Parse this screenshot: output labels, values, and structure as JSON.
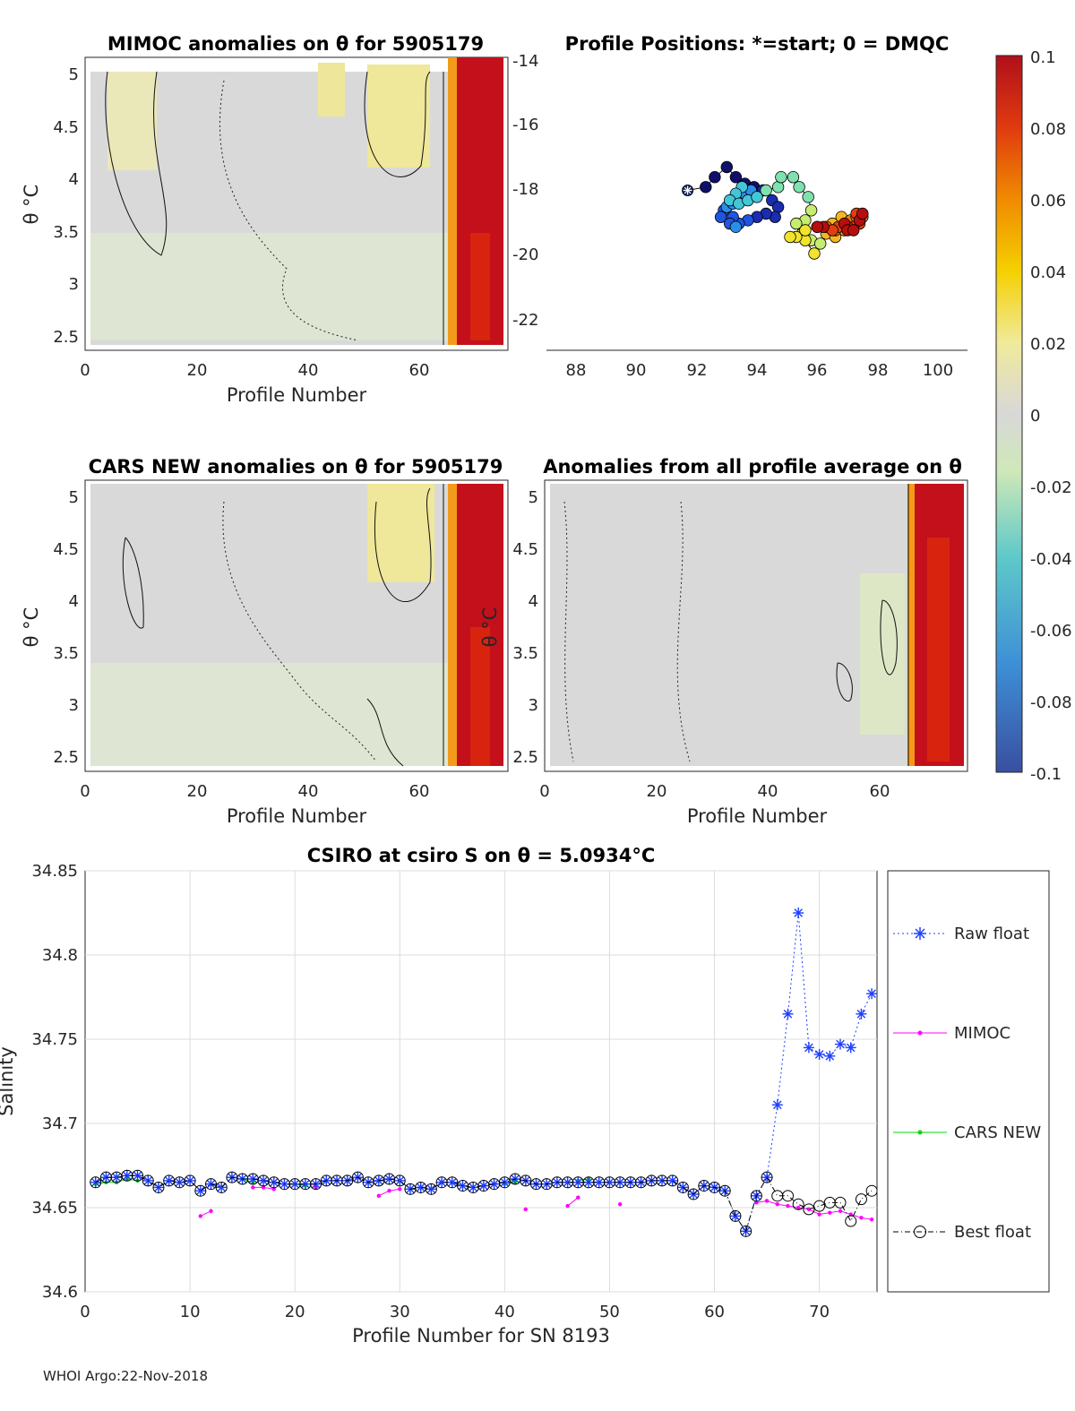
{
  "footer": "WHOI Argo:22-Nov-2018",
  "colorbar": {
    "ticks": [
      "0.1",
      "0.08",
      "0.06",
      "0.04",
      "0.02",
      "0",
      "-0.02",
      "-0.04",
      "-0.06",
      "-0.08",
      "-0.1"
    ]
  },
  "panels": {
    "mimoc": {
      "title": "MIMOC anomalies on θ  for 5905179",
      "xlabel": "Profile Number",
      "ylabel": "θ °C",
      "xticks": [
        "0",
        "20",
        "40",
        "60"
      ],
      "yticks": [
        "5",
        "4.5",
        "4",
        "3.5",
        "3",
        "2.5"
      ]
    },
    "positions": {
      "title": "Profile Positions: *=start; 0 = DMQC",
      "xticks": [
        "88",
        "90",
        "92",
        "94",
        "96",
        "98",
        "100"
      ],
      "yticks": [
        "-14",
        "-16",
        "-18",
        "-20",
        "-22"
      ]
    },
    "cars": {
      "title": "CARS NEW anomalies on θ for 5905179",
      "xlabel": "Profile Number",
      "ylabel": "θ °C",
      "xticks": [
        "0",
        "20",
        "40",
        "60"
      ],
      "yticks": [
        "5",
        "4.5",
        "4",
        "3.5",
        "3",
        "2.5"
      ]
    },
    "avg": {
      "title": "Anomalies from all profile average on θ",
      "xlabel": "Profile Number",
      "ylabel": "θ °C",
      "xticks": [
        "0",
        "20",
        "40",
        "60"
      ],
      "yticks": [
        "5",
        "4.5",
        "4",
        "3.5",
        "3",
        "2.5"
      ]
    }
  },
  "chart_data": {
    "type": "line",
    "title": "CSIRO at csiro S on θ = 5.0934°C",
    "xlabel": "Profile Number for SN 8193",
    "ylabel": "Salinity",
    "xlim": [
      0,
      75.5
    ],
    "ylim": [
      34.6,
      34.85
    ],
    "xticks": [
      "0",
      "10",
      "20",
      "30",
      "40",
      "50",
      "60",
      "70"
    ],
    "yticks": [
      "34.85",
      "34.8",
      "34.75",
      "34.7",
      "34.65",
      "34.6"
    ],
    "grid": true,
    "legend_position": "outside-right",
    "series": [
      {
        "name": "Raw float",
        "color": "#1f3fff",
        "values": [
          [
            1,
            34.665
          ],
          [
            2,
            34.668
          ],
          [
            3,
            34.668
          ],
          [
            4,
            34.669
          ],
          [
            5,
            34.669
          ],
          [
            6,
            34.666
          ],
          [
            7,
            34.662
          ],
          [
            8,
            34.666
          ],
          [
            9,
            34.665
          ],
          [
            10,
            34.666
          ],
          [
            11,
            34.66
          ],
          [
            12,
            34.664
          ],
          [
            13,
            34.662
          ],
          [
            14,
            34.668
          ],
          [
            15,
            34.667
          ],
          [
            16,
            34.667
          ],
          [
            17,
            34.666
          ],
          [
            18,
            34.665
          ],
          [
            19,
            34.664
          ],
          [
            20,
            34.664
          ],
          [
            21,
            34.664
          ],
          [
            22,
            34.664
          ],
          [
            23,
            34.666
          ],
          [
            24,
            34.666
          ],
          [
            25,
            34.666
          ],
          [
            26,
            34.668
          ],
          [
            27,
            34.665
          ],
          [
            28,
            34.666
          ],
          [
            29,
            34.667
          ],
          [
            30,
            34.666
          ],
          [
            31,
            34.661
          ],
          [
            32,
            34.662
          ],
          [
            33,
            34.661
          ],
          [
            34,
            34.665
          ],
          [
            35,
            34.665
          ],
          [
            36,
            34.663
          ],
          [
            37,
            34.662
          ],
          [
            38,
            34.663
          ],
          [
            39,
            34.664
          ],
          [
            40,
            34.665
          ],
          [
            41,
            34.667
          ],
          [
            42,
            34.666
          ],
          [
            43,
            34.664
          ],
          [
            44,
            34.664
          ],
          [
            45,
            34.665
          ],
          [
            46,
            34.665
          ],
          [
            47,
            34.665
          ],
          [
            48,
            34.665
          ],
          [
            49,
            34.665
          ],
          [
            50,
            34.665
          ],
          [
            51,
            34.665
          ],
          [
            52,
            34.665
          ],
          [
            53,
            34.665
          ],
          [
            54,
            34.666
          ],
          [
            55,
            34.666
          ],
          [
            56,
            34.666
          ],
          [
            57,
            34.662
          ],
          [
            58,
            34.658
          ],
          [
            59,
            34.663
          ],
          [
            60,
            34.662
          ],
          [
            61,
            34.66
          ],
          [
            62,
            34.645
          ],
          [
            63,
            34.636
          ],
          [
            64,
            34.657
          ],
          [
            65,
            34.668
          ],
          [
            66,
            34.711
          ],
          [
            67,
            34.765
          ],
          [
            68,
            34.825
          ],
          [
            69,
            34.745
          ],
          [
            70,
            34.741
          ],
          [
            71,
            34.74
          ],
          [
            72,
            34.747
          ],
          [
            73,
            34.745
          ],
          [
            74,
            34.765
          ],
          [
            75,
            34.777
          ]
        ]
      },
      {
        "name": "MIMOC",
        "color": "#ff00ff",
        "values": [
          [
            11,
            34.645
          ],
          [
            12,
            34.648
          ],
          null,
          [
            16,
            34.662
          ],
          [
            17,
            34.662
          ],
          [
            18,
            34.661
          ],
          null,
          [
            22,
            34.662
          ],
          null,
          [
            28,
            34.657
          ],
          [
            29,
            34.66
          ],
          [
            30,
            34.661
          ],
          null,
          [
            42,
            34.649
          ],
          null,
          [
            46,
            34.651
          ],
          [
            47,
            34.656
          ],
          null,
          [
            51,
            34.652
          ],
          null,
          [
            64,
            34.653
          ],
          [
            65,
            34.654
          ],
          [
            66,
            34.652
          ],
          [
            67,
            34.651
          ],
          [
            68,
            34.65
          ],
          [
            69,
            34.649
          ],
          [
            70,
            34.646
          ],
          [
            71,
            34.647
          ],
          [
            72,
            34.648
          ],
          [
            73,
            34.646
          ],
          [
            74,
            34.644
          ],
          [
            75,
            34.643
          ]
        ]
      },
      {
        "name": "CARS NEW",
        "color": "#00dd00",
        "values": [
          [
            1,
            34.664
          ],
          [
            2,
            34.665
          ],
          [
            3,
            34.665
          ],
          [
            4,
            34.667
          ],
          [
            5,
            34.666
          ],
          null,
          [
            15,
            34.667
          ],
          [
            16,
            34.665
          ],
          null,
          [
            20,
            34.664
          ],
          [
            21,
            34.663
          ],
          null,
          [
            40,
            34.664
          ],
          [
            41,
            34.665
          ],
          null,
          [
            47,
            34.666
          ],
          [
            48,
            34.667
          ]
        ]
      },
      {
        "name": "Best float",
        "color": "#000000",
        "values": [
          [
            1,
            34.665
          ],
          [
            2,
            34.668
          ],
          [
            3,
            34.668
          ],
          [
            4,
            34.669
          ],
          [
            5,
            34.669
          ],
          [
            6,
            34.666
          ],
          [
            7,
            34.662
          ],
          [
            8,
            34.666
          ],
          [
            9,
            34.665
          ],
          [
            10,
            34.666
          ],
          [
            11,
            34.66
          ],
          [
            12,
            34.664
          ],
          [
            13,
            34.662
          ],
          [
            14,
            34.668
          ],
          [
            15,
            34.667
          ],
          [
            16,
            34.667
          ],
          [
            17,
            34.666
          ],
          [
            18,
            34.665
          ],
          [
            19,
            34.664
          ],
          [
            20,
            34.664
          ],
          [
            21,
            34.664
          ],
          [
            22,
            34.664
          ],
          [
            23,
            34.666
          ],
          [
            24,
            34.666
          ],
          [
            25,
            34.666
          ],
          [
            26,
            34.668
          ],
          [
            27,
            34.665
          ],
          [
            28,
            34.666
          ],
          [
            29,
            34.667
          ],
          [
            30,
            34.666
          ],
          [
            31,
            34.661
          ],
          [
            32,
            34.662
          ],
          [
            33,
            34.661
          ],
          [
            34,
            34.665
          ],
          [
            35,
            34.665
          ],
          [
            36,
            34.663
          ],
          [
            37,
            34.662
          ],
          [
            38,
            34.663
          ],
          [
            39,
            34.664
          ],
          [
            40,
            34.665
          ],
          [
            41,
            34.667
          ],
          [
            42,
            34.666
          ],
          [
            43,
            34.664
          ],
          [
            44,
            34.664
          ],
          [
            45,
            34.665
          ],
          [
            46,
            34.665
          ],
          [
            47,
            34.665
          ],
          [
            48,
            34.665
          ],
          [
            49,
            34.665
          ],
          [
            50,
            34.665
          ],
          [
            51,
            34.665
          ],
          [
            52,
            34.665
          ],
          [
            53,
            34.665
          ],
          [
            54,
            34.666
          ],
          [
            55,
            34.666
          ],
          [
            56,
            34.666
          ],
          [
            57,
            34.662
          ],
          [
            58,
            34.658
          ],
          [
            59,
            34.663
          ],
          [
            60,
            34.662
          ],
          [
            61,
            34.66
          ],
          [
            62,
            34.645
          ],
          [
            63,
            34.636
          ],
          [
            64,
            34.657
          ],
          [
            65,
            34.668
          ],
          [
            66,
            34.657
          ],
          [
            67,
            34.657
          ],
          [
            68,
            34.652
          ],
          [
            69,
            34.649
          ],
          [
            70,
            34.651
          ],
          [
            71,
            34.653
          ],
          [
            72,
            34.653
          ],
          [
            73,
            34.642
          ],
          [
            74,
            34.655
          ],
          [
            75,
            34.66
          ]
        ]
      }
    ]
  },
  "positions_data": {
    "type": "scatter",
    "x_range": [
      87,
      101
    ],
    "y_range": [
      -23,
      -14
    ],
    "points": [
      [
        91.7,
        -18.0
      ],
      [
        92.3,
        -17.9
      ],
      [
        92.6,
        -17.6
      ],
      [
        93.0,
        -17.3
      ],
      [
        93.3,
        -17.6
      ],
      [
        93.6,
        -17.8
      ],
      [
        93.9,
        -17.9
      ],
      [
        94.2,
        -18.0
      ],
      [
        94.5,
        -18.3
      ],
      [
        94.7,
        -18.5
      ],
      [
        94.6,
        -18.8
      ],
      [
        94.3,
        -18.7
      ],
      [
        94.0,
        -18.8
      ],
      [
        93.7,
        -18.9
      ],
      [
        93.4,
        -19.0
      ],
      [
        93.2,
        -18.8
      ],
      [
        92.9,
        -18.6
      ],
      [
        92.8,
        -18.8
      ],
      [
        93.1,
        -19.0
      ],
      [
        93.3,
        -19.1
      ],
      [
        93.0,
        -18.5
      ],
      [
        93.2,
        -18.4
      ],
      [
        93.4,
        -18.2
      ],
      [
        93.6,
        -18.1
      ],
      [
        93.8,
        -18.0
      ],
      [
        93.5,
        -17.9
      ],
      [
        93.3,
        -18.1
      ],
      [
        93.1,
        -18.3
      ],
      [
        93.4,
        -18.4
      ],
      [
        93.7,
        -18.3
      ],
      [
        94.0,
        -18.2
      ],
      [
        94.3,
        -18.0
      ],
      [
        94.7,
        -17.9
      ],
      [
        94.8,
        -17.6
      ],
      [
        95.2,
        -17.6
      ],
      [
        95.4,
        -17.9
      ],
      [
        95.7,
        -18.2
      ],
      [
        95.8,
        -18.6
      ],
      [
        95.6,
        -18.9
      ],
      [
        95.3,
        -19.0
      ],
      [
        95.5,
        -19.3
      ],
      [
        95.8,
        -19.5
      ],
      [
        96.1,
        -19.6
      ],
      [
        95.9,
        -19.9
      ],
      [
        95.6,
        -19.5
      ],
      [
        95.3,
        -19.4
      ],
      [
        95.1,
        -19.4
      ],
      [
        95.6,
        -19.2
      ],
      [
        96.0,
        -19.1
      ],
      [
        96.3,
        -19.3
      ],
      [
        96.6,
        -19.4
      ],
      [
        96.9,
        -19.2
      ],
      [
        97.1,
        -19.0
      ],
      [
        96.8,
        -18.8
      ],
      [
        96.5,
        -19.0
      ],
      [
        96.3,
        -19.1
      ],
      [
        96.6,
        -19.2
      ],
      [
        96.9,
        -19.1
      ],
      [
        97.1,
        -18.9
      ],
      [
        97.3,
        -18.8
      ],
      [
        97.5,
        -18.8
      ],
      [
        97.4,
        -19.0
      ],
      [
        97.2,
        -19.1
      ],
      [
        97.3,
        -18.7
      ],
      [
        97.0,
        -19.1
      ],
      [
        96.7,
        -19.1
      ],
      [
        96.5,
        -19.2
      ],
      [
        96.2,
        -19.1
      ],
      [
        96.0,
        -19.1
      ],
      [
        96.9,
        -19.0
      ],
      [
        97.0,
        -19.2
      ],
      [
        97.2,
        -19.2
      ],
      [
        97.4,
        -18.9
      ],
      [
        97.5,
        -18.7
      ]
    ]
  },
  "legend": {
    "raw": "Raw float",
    "mimoc": "MIMOC",
    "cars": "CARS NEW",
    "best": "Best float"
  }
}
